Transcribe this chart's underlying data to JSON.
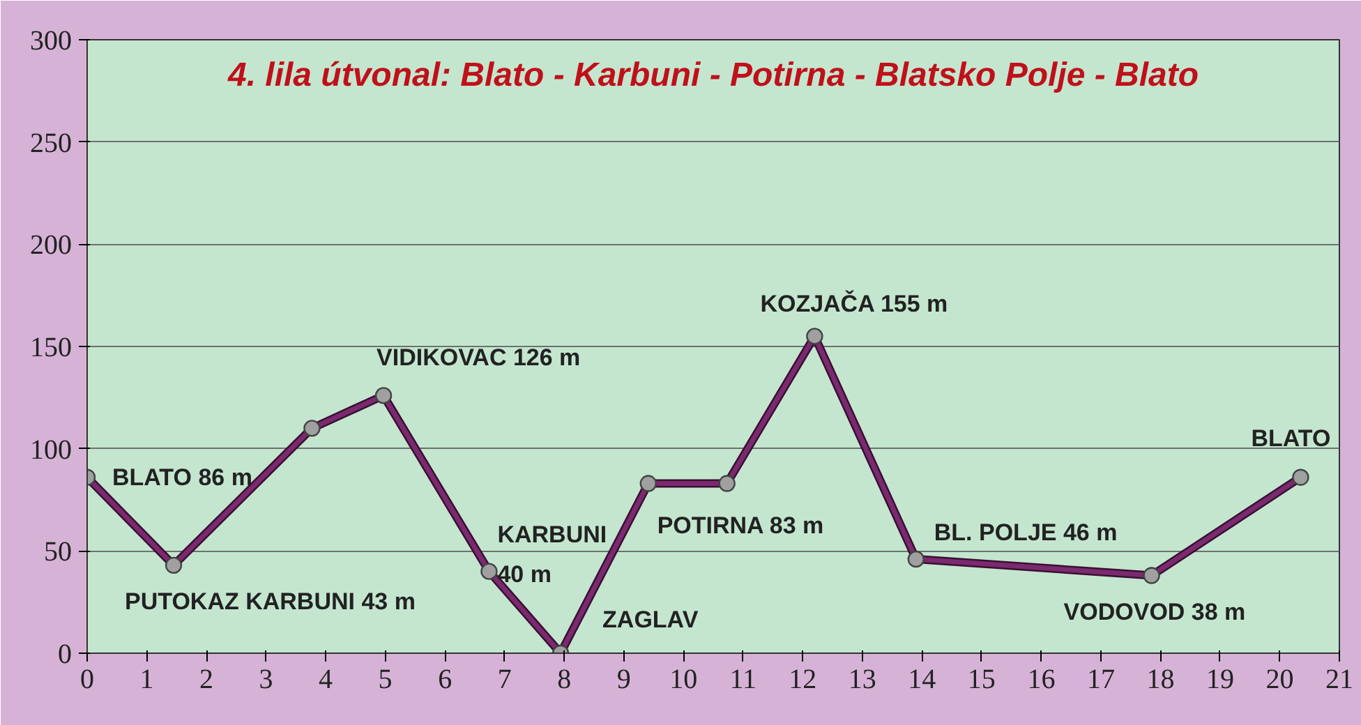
{
  "chart_data": {
    "type": "line",
    "title": "4. lila útvonal: Blato - Karbuni - Potirna - Blatsko Polje - Blato",
    "x": [
      0,
      1.45,
      3.77,
      4.97,
      6.74,
      7.94,
      9.41,
      10.73,
      12.2,
      13.9,
      17.85,
      20.35
    ],
    "series": [
      {
        "color": "#7a2a6e",
        "values": [
          86,
          43,
          110,
          126,
          40,
          0,
          83,
          83,
          155,
          46,
          38,
          86
        ]
      }
    ],
    "xlim": [
      0,
      21
    ],
    "xticks": [
      0,
      1,
      2,
      3,
      4,
      5,
      6,
      7,
      8,
      9,
      10,
      11,
      12,
      13,
      14,
      15,
      16,
      17,
      18,
      19,
      20,
      21
    ],
    "ylim": [
      0,
      300
    ],
    "yticks": [
      0,
      50,
      100,
      150,
      200,
      250,
      300
    ],
    "grid": "y",
    "marker": "circle",
    "line_style": "solid",
    "annotations": [
      {
        "text": "BLATO 86 m",
        "x": 0,
        "y": 86
      },
      {
        "text": "PUTOKAZ KARBUNI 43 m",
        "x": 1.45,
        "y": 43
      },
      {
        "text": "VIDIKOVAC 126 m",
        "x": 4.97,
        "y": 126
      },
      {
        "text": "KARBUNI\n40 m",
        "x": 6.74,
        "y": 40
      },
      {
        "text": "ZAGLAV",
        "x": 7.94,
        "y": 0
      },
      {
        "text": "POTIRNA 83 m",
        "x": 10.73,
        "y": 83
      },
      {
        "text": "KOZJAČA 155 m",
        "x": 12.2,
        "y": 155
      },
      {
        "text": "BL. POLJE 46 m",
        "x": 13.9,
        "y": 46
      },
      {
        "text": "VODOVOD 38 m",
        "x": 17.85,
        "y": 38
      },
      {
        "text": "BLATO",
        "x": 20.35,
        "y": 86
      }
    ]
  }
}
